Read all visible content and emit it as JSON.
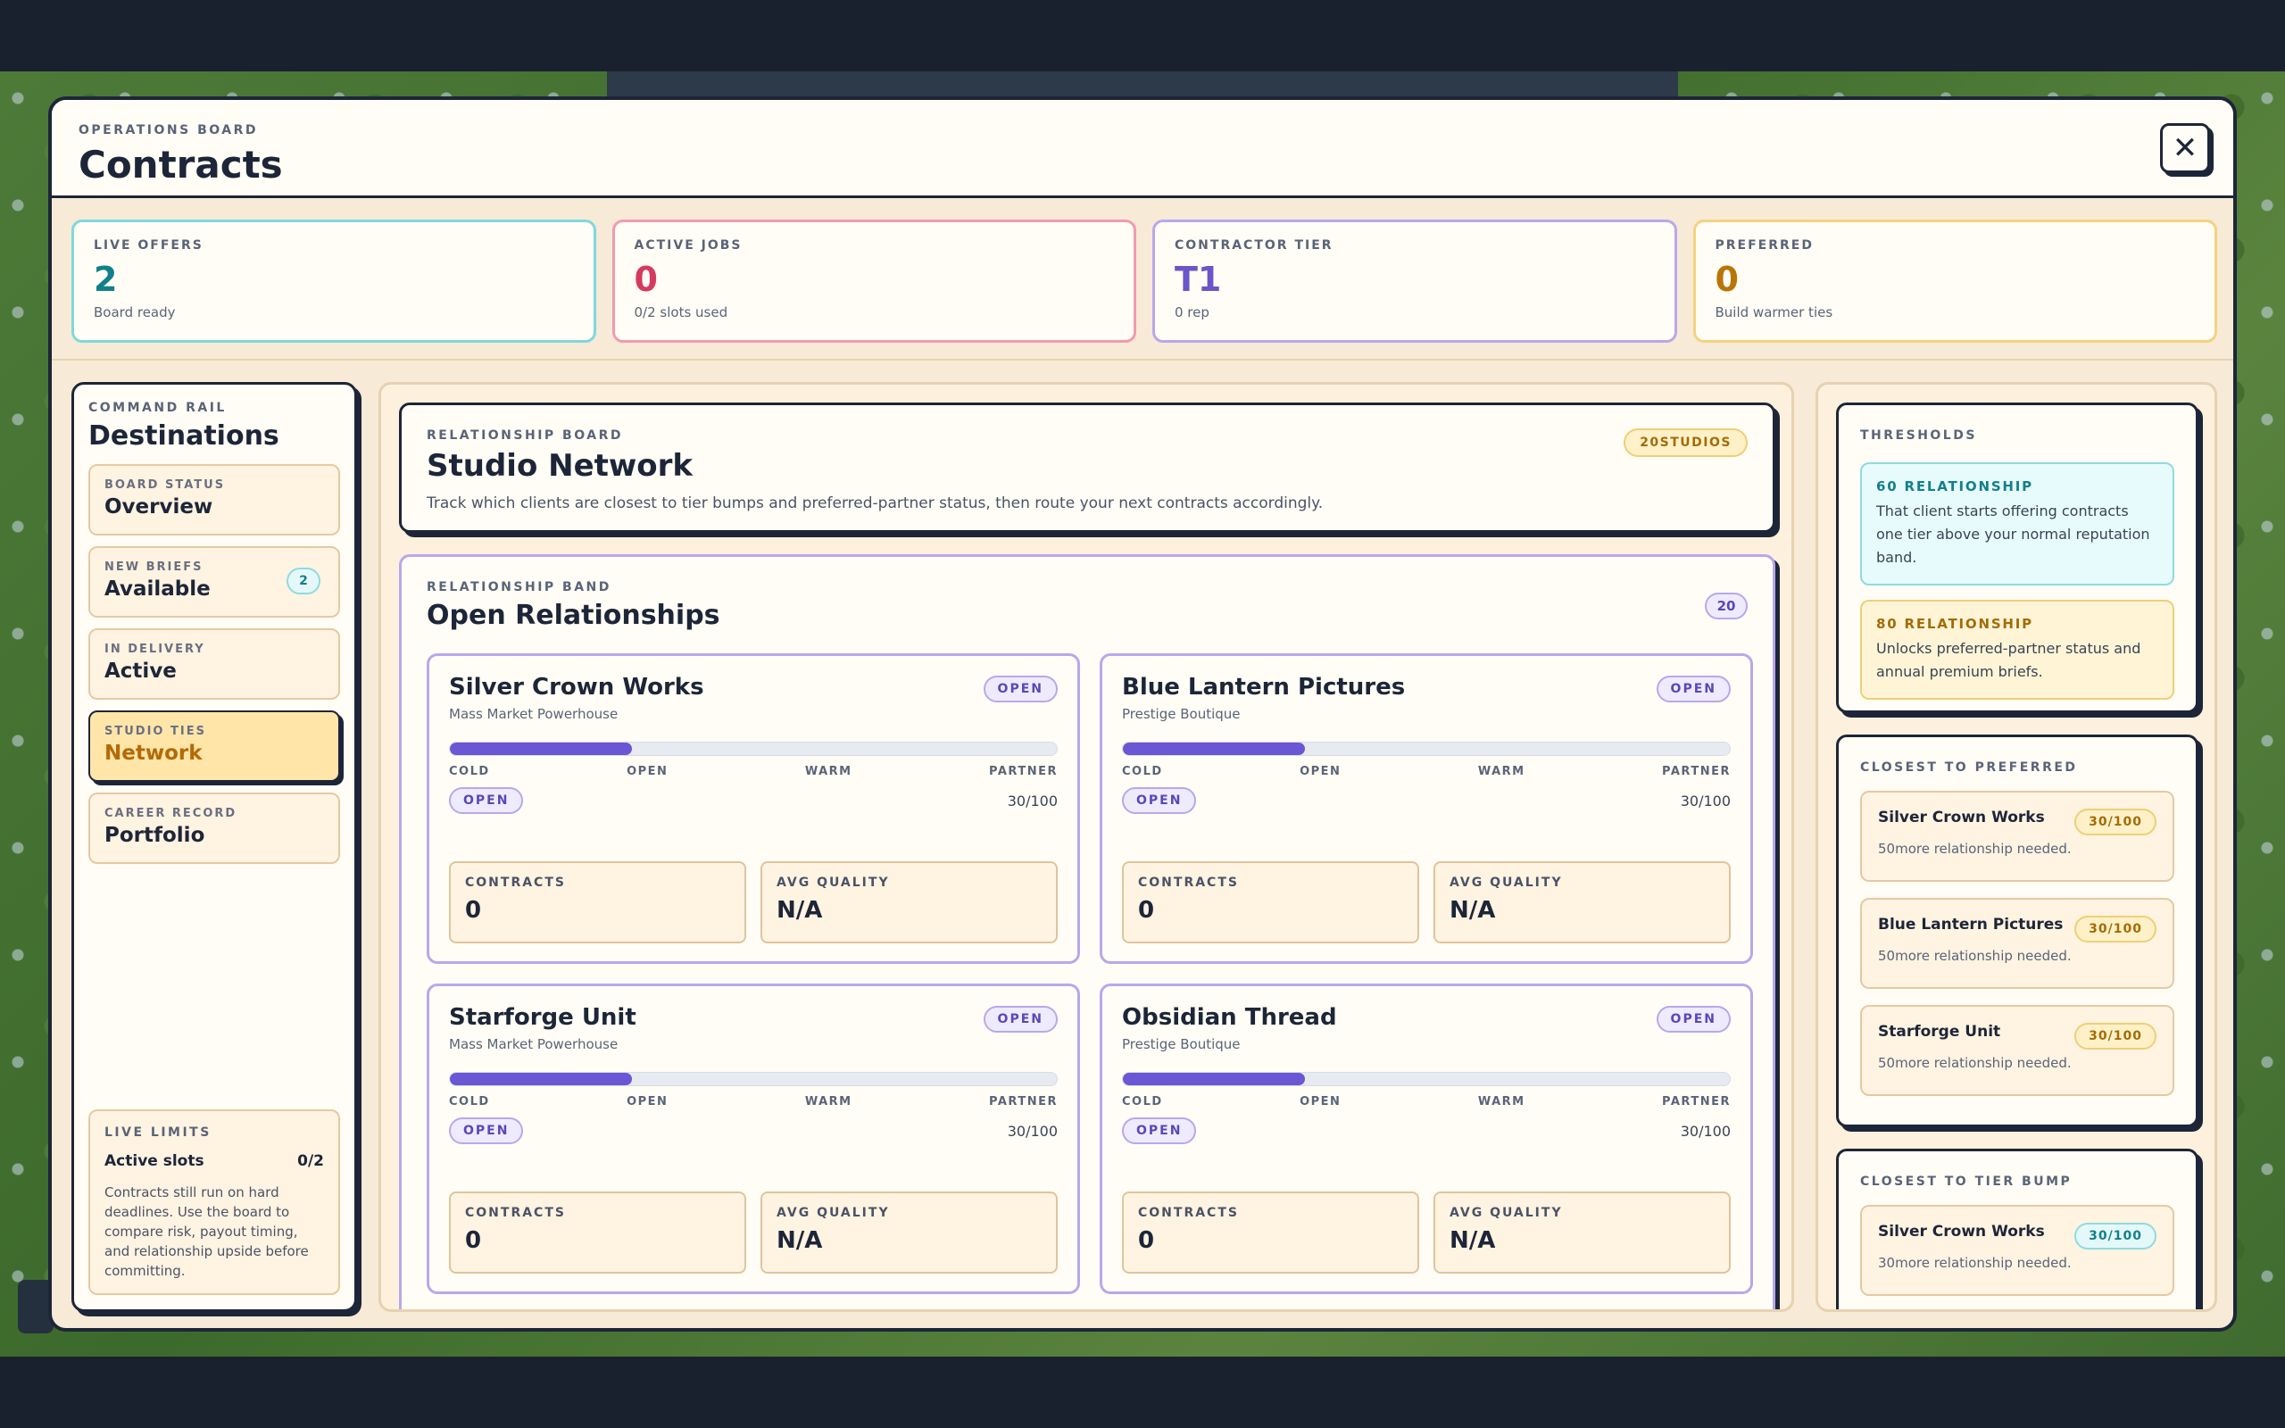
{
  "header": {
    "eyebrow": "OPERATIONS BOARD",
    "title": "Contracts",
    "close_icon": "✕"
  },
  "stats": [
    {
      "label": "LIVE OFFERS",
      "value": "2",
      "sub": "Board ready",
      "color": "#12808a"
    },
    {
      "label": "ACTIVE JOBS",
      "value": "0",
      "sub": "0/2 slots used",
      "color": "#d63a5e"
    },
    {
      "label": "CONTRACTOR TIER",
      "value": "T1",
      "sub": "0 rep",
      "color": "#6a56c8"
    },
    {
      "label": "PREFERRED",
      "value": "0",
      "sub": "Build warmer ties",
      "color": "#b97508"
    }
  ],
  "rail": {
    "eyebrow": "COMMAND RAIL",
    "title": "Destinations",
    "items": [
      {
        "label": "BOARD STATUS",
        "text": "Overview"
      },
      {
        "label": "NEW BRIEFS",
        "text": "Available",
        "badge": "2"
      },
      {
        "label": "IN DELIVERY",
        "text": "Active"
      },
      {
        "label": "STUDIO TIES",
        "text": "Network"
      },
      {
        "label": "CAREER RECORD",
        "text": "Portfolio"
      }
    ],
    "limits": {
      "eyebrow": "LIVE LIMITS",
      "row_label": "Active slots",
      "row_value": "0/2",
      "desc": "Contracts still run on hard deadlines. Use the board to compare risk, payout timing, and relationship upside before committing."
    }
  },
  "network": {
    "eyebrow": "RELATIONSHIP BOARD",
    "title": "Studio Network",
    "tag": "20STUDIOS",
    "desc": "Track which clients are closest to tier bumps and preferred-partner status, then route your next contracts accordingly."
  },
  "band": {
    "eyebrow": "RELATIONSHIP BAND",
    "title": "Open Relationships",
    "count": "20",
    "scale": [
      "COLD",
      "OPEN",
      "WARM",
      "PARTNER"
    ],
    "clients": [
      {
        "name": "Silver Crown Works",
        "type": "Mass Market Powerhouse",
        "status": "OPEN",
        "band": "OPEN",
        "relationship": 30,
        "score": "30/100",
        "contracts_label": "CONTRACTS",
        "contracts": "0",
        "quality_label": "AVG QUALITY",
        "quality": "N/A"
      },
      {
        "name": "Blue Lantern Pictures",
        "type": "Prestige Boutique",
        "status": "OPEN",
        "band": "OPEN",
        "relationship": 30,
        "score": "30/100",
        "contracts_label": "CONTRACTS",
        "contracts": "0",
        "quality_label": "AVG QUALITY",
        "quality": "N/A"
      },
      {
        "name": "Starforge Unit",
        "type": "Mass Market Powerhouse",
        "status": "OPEN",
        "band": "OPEN",
        "relationship": 30,
        "score": "30/100",
        "contracts_label": "CONTRACTS",
        "contracts": "0",
        "quality_label": "AVG QUALITY",
        "quality": "N/A"
      },
      {
        "name": "Obsidian Thread",
        "type": "Prestige Boutique",
        "status": "OPEN",
        "band": "OPEN",
        "relationship": 30,
        "score": "30/100",
        "contracts_label": "CONTRACTS",
        "contracts": "0",
        "quality_label": "AVG QUALITY",
        "quality": "N/A"
      }
    ]
  },
  "thresholds": {
    "eyebrow": "THRESHOLDS",
    "items": [
      {
        "head": "60 RELATIONSHIP",
        "desc": "That client starts offering contracts one tier above your normal reputation band."
      },
      {
        "head": "80 RELATIONSHIP",
        "desc": "Unlocks preferred-partner status and annual premium briefs."
      }
    ]
  },
  "closest_preferred": {
    "eyebrow": "CLOSEST TO PREFERRED",
    "items": [
      {
        "name": "Silver Crown Works",
        "score": "30/100",
        "need": "50more relationship needed."
      },
      {
        "name": "Blue Lantern Pictures",
        "score": "30/100",
        "need": "50more relationship needed."
      },
      {
        "name": "Starforge Unit",
        "score": "30/100",
        "need": "50more relationship needed."
      }
    ]
  },
  "closest_tier": {
    "eyebrow": "CLOSEST TO TIER BUMP",
    "items": [
      {
        "name": "Silver Crown Works",
        "score": "30/100",
        "need": "30more relationship needed."
      }
    ]
  }
}
